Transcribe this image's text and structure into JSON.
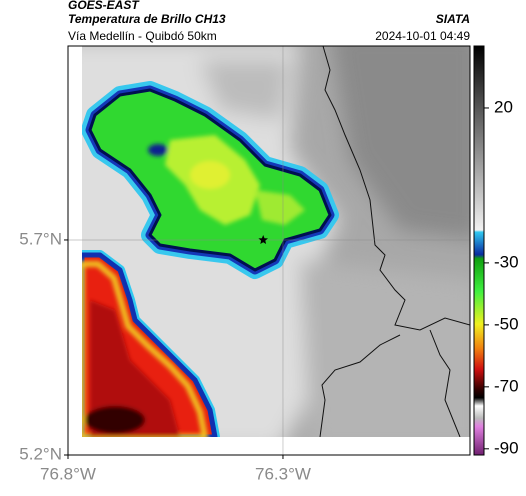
{
  "header": {
    "satellite": "GOES-EAST",
    "product": "Temperatura de Brillo CH13",
    "source": "SIATA",
    "region": "Vía Medellín - Quibdó 50km",
    "datetime": "2024-10-01 04:49"
  },
  "map": {
    "xlim": [
      -76.8,
      -75.865
    ],
    "ylim": [
      5.2,
      6.151
    ],
    "xticks": [
      {
        "value": -76.8,
        "label": "76.8°W"
      },
      {
        "value": -76.3,
        "label": "76.3°W"
      }
    ],
    "yticks": [
      {
        "value": 5.2,
        "label": "5.2°N"
      },
      {
        "value": 5.7,
        "label": "5.7°N"
      }
    ],
    "grid": true,
    "marker": {
      "lon": -76.346,
      "lat": 5.7
    }
  },
  "colorbar": {
    "lim": [
      -92,
      40
    ],
    "ticks": [
      20,
      -30,
      -50,
      -70,
      -90
    ]
  }
}
